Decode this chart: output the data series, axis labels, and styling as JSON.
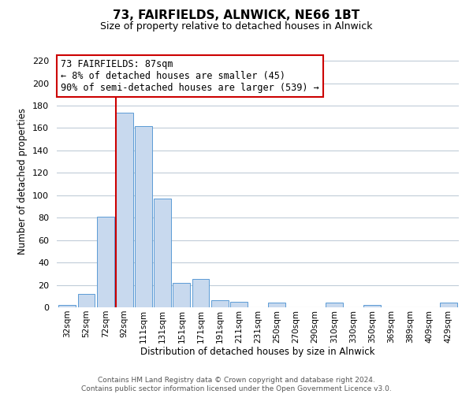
{
  "title": "73, FAIRFIELDS, ALNWICK, NE66 1BT",
  "subtitle": "Size of property relative to detached houses in Alnwick",
  "xlabel": "Distribution of detached houses by size in Alnwick",
  "ylabel": "Number of detached properties",
  "bar_labels": [
    "32sqm",
    "52sqm",
    "72sqm",
    "92sqm",
    "111sqm",
    "131sqm",
    "151sqm",
    "171sqm",
    "191sqm",
    "211sqm",
    "231sqm",
    "250sqm",
    "270sqm",
    "290sqm",
    "310sqm",
    "330sqm",
    "350sqm",
    "369sqm",
    "389sqm",
    "409sqm",
    "429sqm"
  ],
  "bar_heights": [
    2,
    12,
    81,
    174,
    162,
    97,
    22,
    25,
    6,
    5,
    0,
    4,
    0,
    0,
    4,
    0,
    2,
    0,
    0,
    0,
    4
  ],
  "bar_color": "#c8d9ee",
  "bar_edge_color": "#5b9bd5",
  "vline_color": "#cc0000",
  "ylim": [
    0,
    225
  ],
  "yticks": [
    0,
    20,
    40,
    60,
    80,
    100,
    120,
    140,
    160,
    180,
    200,
    220
  ],
  "annotation_title": "73 FAIRFIELDS: 87sqm",
  "annotation_line1": "← 8% of detached houses are smaller (45)",
  "annotation_line2": "90% of semi-detached houses are larger (539) →",
  "annotation_box_color": "#ffffff",
  "annotation_box_edge": "#cc0000",
  "footer_line1": "Contains HM Land Registry data © Crown copyright and database right 2024.",
  "footer_line2": "Contains public sector information licensed under the Open Government Licence v3.0.",
  "background_color": "#ffffff",
  "grid_color": "#c0ccd8"
}
